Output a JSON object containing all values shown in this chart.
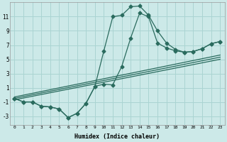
{
  "xlabel": "Humidex (Indice chaleur)",
  "background_color": "#cce9e8",
  "grid_color": "#aad4d2",
  "line_color": "#2a6b5e",
  "xlim": [
    -0.5,
    23.5
  ],
  "ylim": [
    -4.2,
    13.0
  ],
  "xticks": [
    0,
    1,
    2,
    3,
    4,
    5,
    6,
    7,
    8,
    9,
    10,
    11,
    12,
    13,
    14,
    15,
    16,
    17,
    18,
    19,
    20,
    21,
    22,
    23
  ],
  "yticks": [
    -3,
    -1,
    1,
    3,
    5,
    7,
    9,
    11
  ],
  "curve1_x": [
    0,
    1,
    2,
    3,
    4,
    5,
    6,
    7,
    8,
    9,
    10,
    11,
    12,
    13,
    14,
    15,
    16,
    17,
    18,
    19,
    20,
    21,
    22,
    23
  ],
  "curve1_y": [
    -0.5,
    -1.0,
    -1.0,
    -1.6,
    -1.7,
    -2.0,
    -3.2,
    -2.6,
    -1.2,
    1.2,
    6.2,
    11.0,
    11.2,
    12.4,
    12.5,
    11.2,
    9.0,
    7.3,
    6.4,
    6.0,
    6.1,
    6.5,
    7.2,
    7.5
  ],
  "curve2_x": [
    0,
    1,
    2,
    3,
    4,
    5,
    6,
    7,
    8,
    9,
    10,
    11,
    12,
    13,
    14,
    15,
    16,
    17,
    18,
    19,
    20,
    21,
    22,
    23
  ],
  "curve2_y": [
    -0.5,
    -1.0,
    -1.0,
    -1.6,
    -1.7,
    -2.0,
    -3.2,
    -2.6,
    -1.2,
    1.2,
    1.5,
    1.4,
    4.0,
    8.0,
    11.5,
    11.0,
    7.3,
    6.6,
    6.2,
    6.0,
    6.1,
    6.5,
    7.2,
    7.5
  ],
  "line1_x": [
    0,
    23
  ],
  "line1_y": [
    -0.7,
    5.0
  ],
  "line2_x": [
    0,
    23
  ],
  "line2_y": [
    -0.5,
    5.3
  ],
  "line3_x": [
    0,
    23
  ],
  "line3_y": [
    -0.3,
    5.6
  ],
  "marker_size": 2.5
}
